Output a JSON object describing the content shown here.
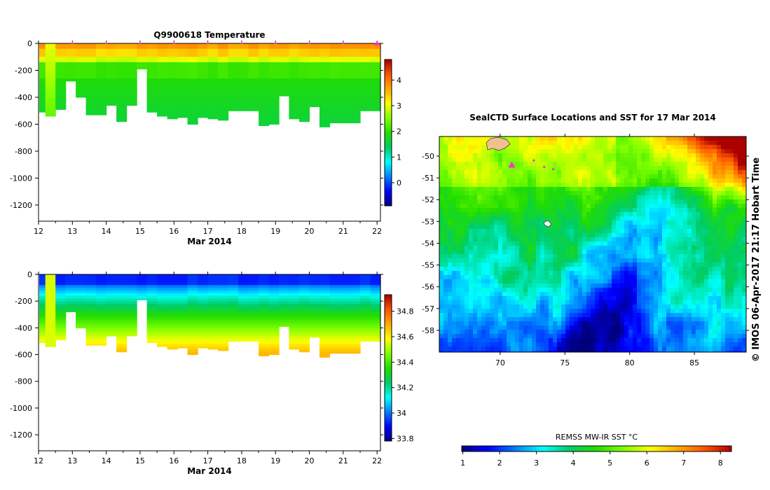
{
  "colors": {
    "jet": [
      "#00007f",
      "#0000ff",
      "#007fff",
      "#00ffff",
      "#00cc66",
      "#22dd00",
      "#7fff00",
      "#ffff00",
      "#ffaa00",
      "#ff5500",
      "#aa0000"
    ],
    "missing": "#ffffff",
    "land": "#f0c090",
    "track_marker": "#ff33cc"
  },
  "chart_data": [
    {
      "id": "temperature-section",
      "type": "heatmap",
      "title": "Q9900618  Temperature",
      "xlabel": "Mar 2014",
      "ylabel": "",
      "x_ticks": [
        12,
        13,
        14,
        15,
        16,
        17,
        18,
        19,
        20,
        21,
        22
      ],
      "y_ticks": [
        0,
        -200,
        -400,
        -600,
        -800,
        -1000,
        -1200
      ],
      "xlim": [
        12,
        22.1
      ],
      "ylim": [
        -1320,
        0
      ],
      "profile_times": [
        12.05,
        12.35,
        12.65,
        12.95,
        13.25,
        13.55,
        13.85,
        14.15,
        14.45,
        14.75,
        15.05,
        15.35,
        15.65,
        15.95,
        16.25,
        16.55,
        16.85,
        17.15,
        17.45,
        17.75,
        18.05,
        18.35,
        18.65,
        18.95,
        19.25,
        19.55,
        19.85,
        20.15,
        20.45,
        20.75,
        21.05,
        21.35,
        21.65,
        21.95
      ],
      "profile_max_depths": [
        510,
        540,
        490,
        280,
        400,
        530,
        530,
        460,
        580,
        460,
        190,
        510,
        540,
        560,
        550,
        600,
        550,
        560,
        570,
        500,
        500,
        500,
        610,
        600,
        390,
        560,
        580,
        470,
        620,
        590,
        590,
        590,
        500,
        500
      ],
      "surface_markers_x": [
        13,
        14,
        15,
        16,
        17,
        18,
        19,
        20,
        21,
        22
      ],
      "colorbar": {
        "ticks": [
          0,
          1,
          2,
          3,
          4
        ],
        "range": [
          -0.9,
          4.8
        ]
      }
    },
    {
      "id": "salinity-section",
      "type": "heatmap",
      "title": "",
      "xlabel": "Mar 2014",
      "ylabel": "",
      "x_ticks": [
        12,
        13,
        14,
        15,
        16,
        17,
        18,
        19,
        20,
        21,
        22
      ],
      "y_ticks": [
        0,
        -200,
        -400,
        -600,
        -800,
        -1000,
        -1200
      ],
      "xlim": [
        12,
        22.1
      ],
      "ylim": [
        -1320,
        0
      ],
      "colorbar": {
        "ticks": [
          33.8,
          34,
          34.2,
          34.4,
          34.6,
          34.8
        ],
        "tick_labels": [
          "33.8",
          "34",
          "34.2",
          "34.4",
          "34.6",
          "34.8"
        ],
        "range": [
          33.78,
          34.93
        ]
      }
    },
    {
      "id": "sst-map",
      "type": "heatmap",
      "title": "SealCTD Surface Locations and SST for 17 Mar 2014",
      "xlabel": "",
      "ylabel": "",
      "x_ticks": [
        70,
        75,
        80,
        85
      ],
      "y_ticks": [
        -50,
        -51,
        -52,
        -53,
        -54,
        -55,
        -56,
        -57,
        -58
      ],
      "xlim": [
        65.3,
        89
      ],
      "ylim": [
        -59,
        -49.1
      ],
      "track_points": [
        [
          70.9,
          -50.4
        ],
        [
          72.6,
          -50.2
        ],
        [
          73.4,
          -50.5
        ],
        [
          74.1,
          -50.6
        ]
      ],
      "colorbar": {
        "label": "REMSS MW-IR SST °C",
        "ticks": [
          1,
          2,
          3,
          4,
          5,
          6,
          7,
          8
        ],
        "range": [
          0.97,
          8.3
        ]
      }
    }
  ],
  "credit": "© IMOS 06-Apr-2017 21:17 Hobart Time"
}
